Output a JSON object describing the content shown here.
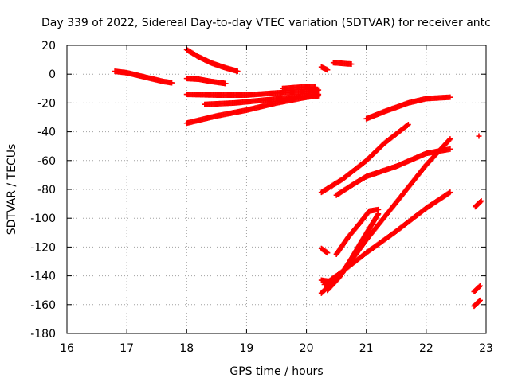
{
  "chart_data": {
    "type": "scatter",
    "title": "Day 339 of 2022, Sidereal Day-to-day VTEC variation (SDTVAR) for receiver antc",
    "xlabel": "GPS time / hours",
    "ylabel": "SDTVAR / TECUs",
    "xlim": [
      16,
      23
    ],
    "ylim": [
      -180,
      20
    ],
    "xticks": [
      "16",
      "17",
      "18",
      "19",
      "20",
      "21",
      "22",
      "23"
    ],
    "yticks": [
      "20",
      "0",
      "-20",
      "-40",
      "-60",
      "-80",
      "-100",
      "-120",
      "-140",
      "-160",
      "-180"
    ],
    "grid": true,
    "marker": "+",
    "color": "#ff0000",
    "tracks": [
      {
        "x": [
          16.8,
          17.0,
          17.2,
          17.4,
          17.6,
          17.75
        ],
        "y": [
          2,
          1,
          -1,
          -3,
          -5,
          -6
        ]
      },
      {
        "x": [
          18.0,
          18.2,
          18.4,
          18.6,
          18.85
        ],
        "y": [
          17,
          12,
          8,
          5,
          2
        ]
      },
      {
        "x": [
          18.0,
          18.2,
          18.4,
          18.65
        ],
        "y": [
          -3,
          -3.5,
          -5,
          -6.5
        ]
      },
      {
        "x": [
          18.0,
          18.5,
          19.0,
          19.5,
          20.0,
          20.2
        ],
        "y": [
          -14,
          -14.5,
          -14.5,
          -13,
          -12,
          -11
        ]
      },
      {
        "x": [
          18.3,
          18.8,
          19.3,
          19.8,
          20.2
        ],
        "y": [
          -21,
          -20,
          -18,
          -16,
          -14
        ]
      },
      {
        "x": [
          18.0,
          18.5,
          19.0,
          19.5,
          20.0,
          20.2
        ],
        "y": [
          -34,
          -29,
          -25,
          -20,
          -16,
          -15
        ]
      },
      {
        "x": [
          19.6,
          19.9,
          20.15
        ],
        "y": [
          -10,
          -9,
          -9
        ]
      },
      {
        "x": [
          20.25,
          20.35
        ],
        "y": [
          5,
          3
        ]
      },
      {
        "x": [
          20.45,
          20.6,
          20.75
        ],
        "y": [
          8,
          7.5,
          7
        ]
      },
      {
        "x": [
          21.0,
          21.3,
          21.7,
          22.0,
          22.4
        ],
        "y": [
          -31,
          -26,
          -20,
          -17,
          -16
        ]
      },
      {
        "x": [
          20.25,
          20.6,
          21.0,
          21.3,
          21.7
        ],
        "y": [
          -82,
          -73,
          -60,
          -48,
          -35
        ]
      },
      {
        "x": [
          20.5,
          20.8,
          21.0,
          21.5,
          22.0,
          22.4
        ],
        "y": [
          -84,
          -76,
          -71,
          -64,
          -55,
          -52
        ]
      },
      {
        "x": [
          20.25,
          20.6,
          21.0,
          21.5,
          22.0,
          22.4
        ],
        "y": [
          -152,
          -138,
          -115,
          -89,
          -63,
          -45
        ]
      },
      {
        "x": [
          20.3,
          20.6,
          21.0,
          21.5,
          22.0,
          22.4
        ],
        "y": [
          -146,
          -137,
          -124,
          -109,
          -93,
          -82
        ]
      },
      {
        "x": [
          20.5,
          20.7,
          20.9,
          21.05,
          21.2
        ],
        "y": [
          -125,
          -113,
          -103,
          -95,
          -94
        ]
      },
      {
        "x": [
          20.35,
          20.55,
          20.75,
          20.95,
          21.2
        ],
        "y": [
          -150,
          -141,
          -128,
          -114,
          -97
        ]
      },
      {
        "x": [
          20.25,
          20.35
        ],
        "y": [
          -121,
          -124
        ]
      },
      {
        "x": [
          20.25,
          20.4
        ],
        "y": [
          -143,
          -144
        ]
      },
      {
        "x": [
          22.82,
          22.92
        ],
        "y": [
          -92,
          -88
        ]
      },
      {
        "x": [
          22.8,
          22.9
        ],
        "y": [
          -151,
          -147
        ]
      },
      {
        "x": [
          22.8,
          22.9
        ],
        "y": [
          -161,
          -157
        ]
      },
      {
        "x": [
          22.88
        ],
        "y": [
          -43
        ]
      }
    ]
  }
}
